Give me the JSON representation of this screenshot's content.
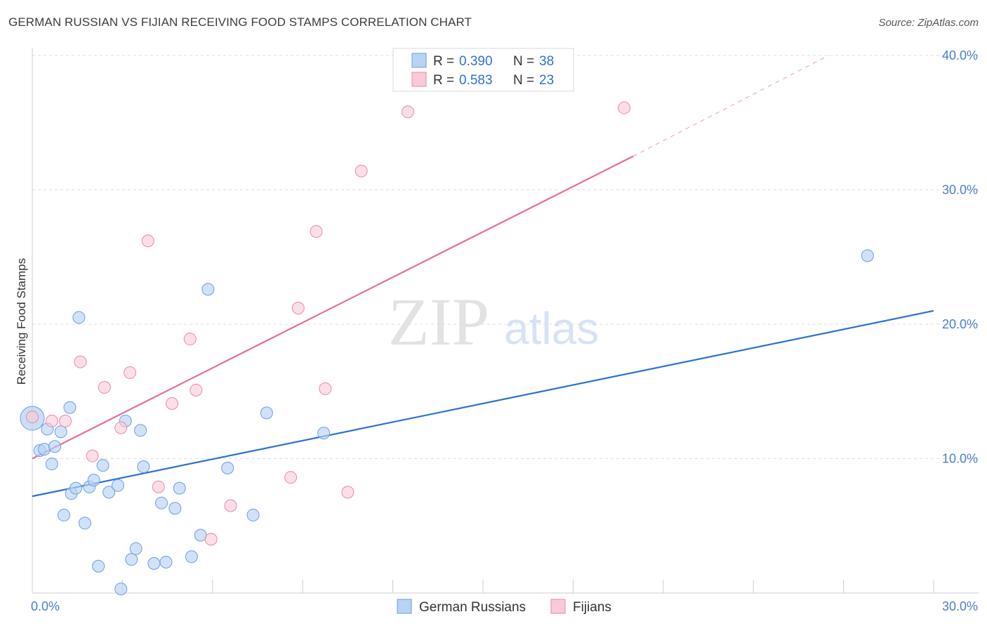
{
  "header": {
    "title": "GERMAN RUSSIAN VS FIJIAN RECEIVING FOOD STAMPS CORRELATION CHART",
    "source": "Source: ZipAtlas.com"
  },
  "watermark": {
    "zip": "ZIP",
    "atlas": "atlas"
  },
  "colors": {
    "blue_fill": "#b8d3f4",
    "blue_stroke": "#6a9fe0",
    "blue_line": "#2a72d0",
    "pink_fill": "#f9c9d7",
    "pink_stroke": "#e98aa6",
    "pink_line": "#e4708f",
    "tick_text": "#4a80c8",
    "grid": "#dddddd"
  },
  "chart_data": {
    "type": "scatter",
    "title": "GERMAN RUSSIAN VS FIJIAN RECEIVING FOOD STAMPS CORRELATION CHART",
    "xlabel": "",
    "ylabel": "Receiving Food Stamps",
    "xlim": [
      0,
      30
    ],
    "ylim": [
      0,
      40
    ],
    "x_tick_labels": [
      {
        "value": 0,
        "label": "0.0%"
      },
      {
        "value": 30,
        "label": "30.0%"
      }
    ],
    "y_tick_labels": [
      {
        "value": 10,
        "label": "10.0%"
      },
      {
        "value": 20,
        "label": "20.0%"
      },
      {
        "value": 30,
        "label": "30.0%"
      },
      {
        "value": 40,
        "label": "40.0%"
      }
    ],
    "legend": {
      "position": "top-center",
      "entries": [
        {
          "r_label": "R =",
          "r_value": "0.390",
          "n_label": "N =",
          "n_value": "38"
        },
        {
          "r_label": "R =",
          "r_value": "0.583",
          "n_label": "N =",
          "n_value": "23"
        }
      ]
    },
    "series": [
      {
        "name": "German Russians",
        "color": "#6a9fe0",
        "trend": {
          "x": [
            0,
            30
          ],
          "y": [
            7.2,
            21.0
          ]
        },
        "points": [
          {
            "x": 0.0,
            "y": 13.0,
            "big": true
          },
          {
            "x": 0.25,
            "y": 10.6
          },
          {
            "x": 0.4,
            "y": 10.7
          },
          {
            "x": 0.5,
            "y": 12.2
          },
          {
            "x": 0.65,
            "y": 9.6
          },
          {
            "x": 0.75,
            "y": 10.9
          },
          {
            "x": 0.95,
            "y": 12.0
          },
          {
            "x": 1.05,
            "y": 5.8
          },
          {
            "x": 1.25,
            "y": 13.8
          },
          {
            "x": 1.3,
            "y": 7.4
          },
          {
            "x": 1.45,
            "y": 7.8
          },
          {
            "x": 1.55,
            "y": 20.5
          },
          {
            "x": 1.75,
            "y": 5.2
          },
          {
            "x": 1.9,
            "y": 7.9
          },
          {
            "x": 2.05,
            "y": 8.4
          },
          {
            "x": 2.2,
            "y": 2.0
          },
          {
            "x": 2.35,
            "y": 9.5
          },
          {
            "x": 2.55,
            "y": 7.5
          },
          {
            "x": 2.85,
            "y": 8.0
          },
          {
            "x": 2.95,
            "y": 0.3
          },
          {
            "x": 3.1,
            "y": 12.8
          },
          {
            "x": 3.3,
            "y": 2.5
          },
          {
            "x": 3.45,
            "y": 3.3
          },
          {
            "x": 3.6,
            "y": 12.1
          },
          {
            "x": 3.7,
            "y": 9.4
          },
          {
            "x": 4.05,
            "y": 2.2
          },
          {
            "x": 4.3,
            "y": 6.7
          },
          {
            "x": 4.45,
            "y": 2.3
          },
          {
            "x": 4.75,
            "y": 6.3
          },
          {
            "x": 4.9,
            "y": 7.8
          },
          {
            "x": 5.3,
            "y": 2.7
          },
          {
            "x": 5.6,
            "y": 4.3
          },
          {
            "x": 5.85,
            "y": 22.6
          },
          {
            "x": 6.5,
            "y": 9.3
          },
          {
            "x": 7.35,
            "y": 5.8
          },
          {
            "x": 7.8,
            "y": 13.4
          },
          {
            "x": 9.7,
            "y": 11.9
          },
          {
            "x": 27.8,
            "y": 25.1
          }
        ]
      },
      {
        "name": "Fijians",
        "color": "#e98aa6",
        "trend": {
          "x": [
            0,
            20.0
          ],
          "y": [
            10.0,
            32.5
          ],
          "dashed_to": {
            "x": 26.5,
            "y": 40.0
          }
        },
        "points": [
          {
            "x": 0.0,
            "y": 13.1
          },
          {
            "x": 0.65,
            "y": 12.8
          },
          {
            "x": 1.1,
            "y": 12.8
          },
          {
            "x": 1.6,
            "y": 17.2
          },
          {
            "x": 2.0,
            "y": 10.2
          },
          {
            "x": 2.4,
            "y": 15.3
          },
          {
            "x": 2.95,
            "y": 12.3
          },
          {
            "x": 3.25,
            "y": 16.4
          },
          {
            "x": 3.85,
            "y": 26.2
          },
          {
            "x": 4.2,
            "y": 7.9
          },
          {
            "x": 4.65,
            "y": 14.1
          },
          {
            "x": 5.25,
            "y": 18.9
          },
          {
            "x": 5.45,
            "y": 15.1
          },
          {
            "x": 5.95,
            "y": 4.0
          },
          {
            "x": 6.6,
            "y": 6.5
          },
          {
            "x": 8.6,
            "y": 8.6
          },
          {
            "x": 8.85,
            "y": 21.2
          },
          {
            "x": 9.45,
            "y": 26.9
          },
          {
            "x": 9.75,
            "y": 15.2
          },
          {
            "x": 10.5,
            "y": 7.5
          },
          {
            "x": 10.95,
            "y": 31.4
          },
          {
            "x": 12.5,
            "y": 35.8
          },
          {
            "x": 19.7,
            "y": 36.1
          }
        ]
      }
    ]
  }
}
